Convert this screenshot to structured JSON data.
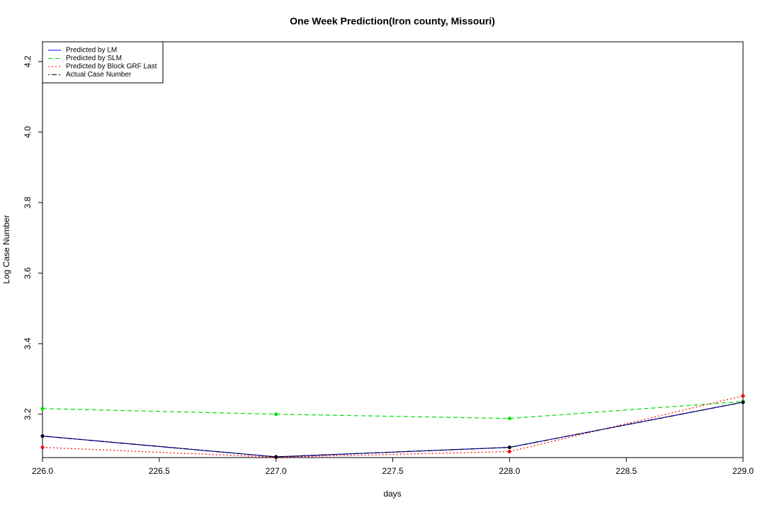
{
  "chart_data": {
    "type": "line",
    "title": "One Week Prediction(Iron county, Missouri)",
    "x_label": "days",
    "y_label": "Log Case Number",
    "x": [
      226,
      227,
      228,
      229
    ],
    "series": [
      {
        "name": "Predicted by LM",
        "color": "#0000ff",
        "dash": "solid",
        "values": [
          3.138,
          3.079,
          3.106,
          3.234
        ]
      },
      {
        "name": "Predicted by SLM",
        "color": "#00dd00",
        "dash": "dashed",
        "values": [
          3.216,
          3.2,
          3.188,
          3.236
        ]
      },
      {
        "name": "Predicted by Block GRF Last",
        "color": "#ff0000",
        "dash": "dotted",
        "values": [
          3.106,
          3.078,
          3.094,
          3.252
        ]
      },
      {
        "name": "Actual Case Number",
        "color": "#000000",
        "dash": "dotdash",
        "values": [
          3.138,
          3.079,
          3.106,
          3.234
        ]
      }
    ],
    "xlim": [
      226,
      229
    ],
    "ylim": [
      3.077,
      4.256
    ],
    "xticks": [
      {
        "value": 226,
        "label": "226.0"
      },
      {
        "value": 226.5,
        "label": "226.5"
      },
      {
        "value": 227,
        "label": "227.0"
      },
      {
        "value": 227.5,
        "label": "227.5"
      },
      {
        "value": 228,
        "label": "228.0"
      },
      {
        "value": 228.5,
        "label": "228.5"
      },
      {
        "value": 229,
        "label": "229.0"
      }
    ],
    "yticks": [
      3.2,
      3.4,
      3.6,
      3.8,
      {
        "value": 4,
        "label": "4.0"
      },
      4.2
    ],
    "legend": "top-left",
    "grid": false
  }
}
